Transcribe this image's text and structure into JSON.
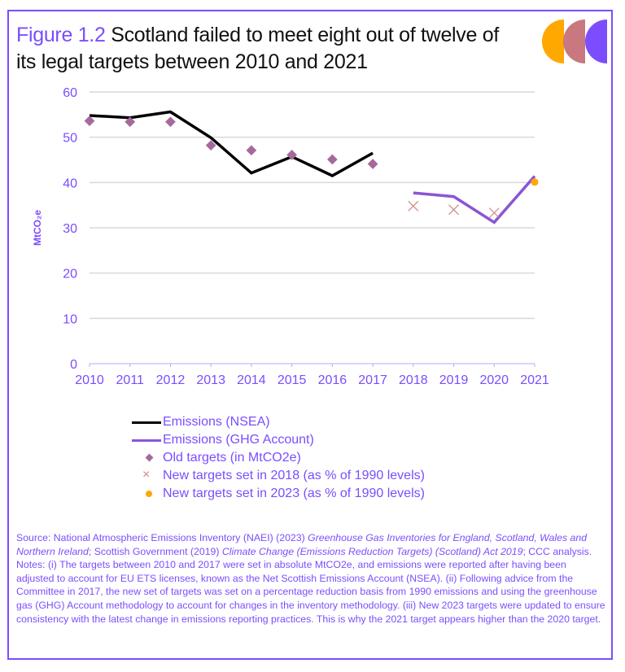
{
  "figure": {
    "number_label": "Figure 1.2",
    "title": "Scotland failed to meet eight out of twelve of its legal targets between 2010 and 2021"
  },
  "logo": {
    "icon": "three-half-circles-logo",
    "colors": [
      "#ffa800",
      "#c8787e",
      "#7b4dff"
    ]
  },
  "chart_data": {
    "type": "line",
    "title": "Scotland failed to meet eight out of twelve of its legal targets between 2010 and 2021",
    "xlabel": "",
    "ylabel": "MtCO₂e",
    "x": [
      "2010",
      "2011",
      "2012",
      "2013",
      "2014",
      "2015",
      "2016",
      "2017",
      "2018",
      "2019",
      "2020",
      "2021"
    ],
    "yticks": [
      "0",
      "10",
      "20",
      "30",
      "40",
      "50",
      "60"
    ],
    "ylim": [
      0,
      60
    ],
    "grid": true,
    "legend_position": "bottom",
    "series": [
      {
        "name": "Emissions (NSEA)",
        "kind": "line",
        "color": "#000000",
        "points": [
          [
            2010,
            54.8
          ],
          [
            2011,
            54.3
          ],
          [
            2012,
            55.6
          ],
          [
            2013,
            49.9
          ],
          [
            2014,
            42.1
          ],
          [
            2015,
            45.7
          ],
          [
            2016,
            41.5
          ],
          [
            2017,
            46.5
          ]
        ]
      },
      {
        "name": "Emissions (GHG Account)",
        "kind": "line",
        "color": "#8a55d6",
        "points": [
          [
            2018,
            37.7
          ],
          [
            2019,
            36.9
          ],
          [
            2020,
            31.2
          ],
          [
            2021,
            41.4
          ]
        ]
      },
      {
        "name": "Old targets (in MtCO2e)",
        "kind": "diamond",
        "color": "#a56a9b",
        "points": [
          [
            2010,
            53.6
          ],
          [
            2011,
            53.4
          ],
          [
            2012,
            53.4
          ],
          [
            2013,
            48.2
          ],
          [
            2014,
            47.1
          ],
          [
            2015,
            46.1
          ],
          [
            2016,
            45.1
          ],
          [
            2017,
            44.1
          ]
        ]
      },
      {
        "name": "New targets set in 2018 (as % of 1990 levels)",
        "kind": "cross",
        "color": "#d08585",
        "points": [
          [
            2018,
            34.8
          ],
          [
            2019,
            34.0
          ],
          [
            2020,
            33.3
          ]
        ]
      },
      {
        "name": "New targets set in 2023 (as % of 1990 levels)",
        "kind": "dot",
        "color": "#ffa800",
        "points": [
          [
            2021,
            40.1
          ]
        ]
      }
    ]
  },
  "notes": {
    "source_prefix": "Source: National Atmospheric Emissions Inventory (NAEI) (2023) ",
    "source_italic_1": "Greenhouse Gas Inventories for England, Scotland, Wales and Northern Ireland",
    "source_mid": "; Scottish Government (2019) ",
    "source_italic_2": "Climate Change (Emissions Reduction Targets) (Scotland) Act 2019",
    "source_suffix": "; CCC analysis.",
    "notes_text": "Notes: (i) The targets between 2010 and 2017 were set in absolute MtCO2e, and emissions were reported after having been adjusted to account for EU ETS licenses, known as the Net Scottish Emissions Account (NSEA). (ii) Following advice from the Committee in 2017, the new set of targets was set on a percentage reduction basis from 1990 emissions and using the greenhouse gas (GHG) Account methodology to account for changes in the inventory methodology. (iii) New 2023 targets were updated to ensure consistency with the latest change in emissions reporting practices. This is why the 2021 target appears higher than the 2020 target."
  }
}
